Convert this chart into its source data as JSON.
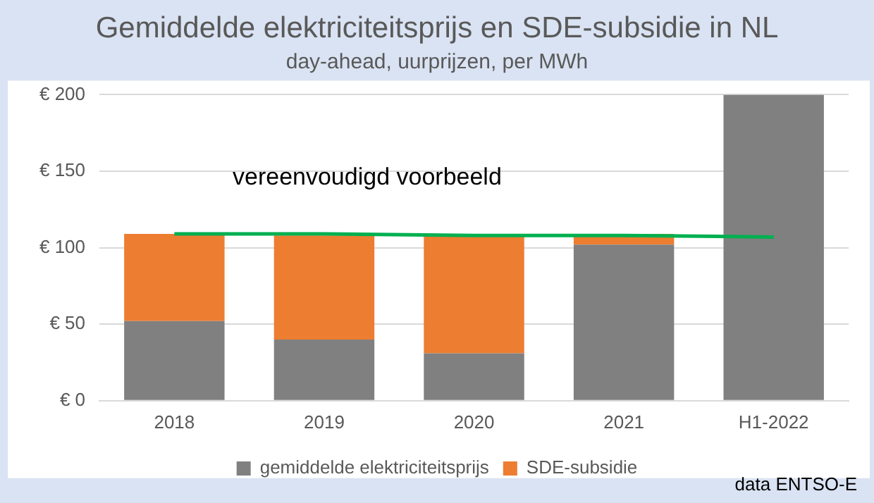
{
  "chart_data": {
    "type": "bar",
    "title": "Gemiddelde elektriciteitsprijs en SDE-subsidie in NL",
    "subtitle": "day-ahead, uurprijzen, per MWh",
    "categories": [
      "2018",
      "2019",
      "2020",
      "2021",
      "H1-2022"
    ],
    "stacked": true,
    "series": [
      {
        "name": "gemiddelde elektriciteitsprijs",
        "color": "#808080",
        "values": [
          52,
          40,
          31,
          102,
          200
        ]
      },
      {
        "name": "SDE-subsidie",
        "color": "#ed7d31",
        "values": [
          57,
          68,
          78,
          7,
          0
        ]
      },
      {
        "type": "line",
        "color": "#00b050",
        "values": [
          109,
          109,
          108,
          108,
          107
        ]
      }
    ],
    "ylim": [
      0,
      200
    ],
    "yticks": [
      {
        "value": 0,
        "label": "€ 0"
      },
      {
        "value": 50,
        "label": "€ 50"
      },
      {
        "value": 100,
        "label": "€ 100"
      },
      {
        "value": 150,
        "label": "€ 150"
      },
      {
        "value": 200,
        "label": "€ 200"
      }
    ],
    "grid": "y",
    "legend": "bottom",
    "marker": "none",
    "annotations": [
      "vereenvoudigd voorbeeld",
      "data ENTSO-E"
    ]
  }
}
